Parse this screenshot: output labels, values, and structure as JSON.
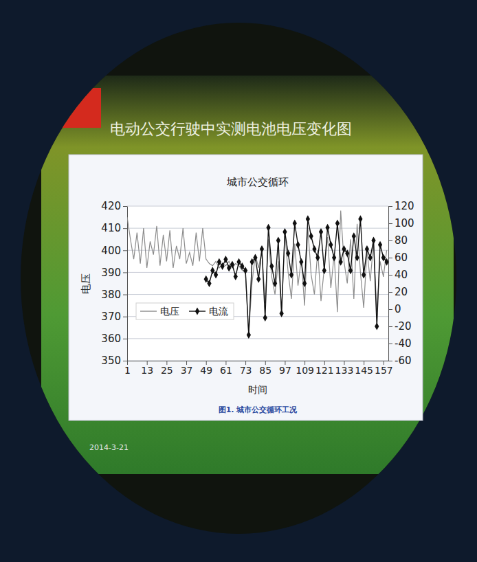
{
  "slide": {
    "title": "电动公交行驶中实测电池电压变化图",
    "date": "2014-3-21"
  },
  "chart_data": {
    "type": "line",
    "title": "城市公交循环",
    "caption": "图1. 城市公交循环工况",
    "x_label": "时间",
    "y_label": "电压",
    "x": [
      1,
      3,
      5,
      7,
      9,
      11,
      13,
      15,
      17,
      19,
      21,
      23,
      25,
      27,
      29,
      31,
      33,
      35,
      37,
      39,
      41,
      43,
      45,
      47,
      49,
      51,
      53,
      55,
      57,
      59,
      61,
      63,
      65,
      67,
      69,
      71,
      73,
      75,
      77,
      79,
      81,
      83,
      85,
      87,
      89,
      91,
      93,
      95,
      97,
      99,
      101,
      103,
      105,
      107,
      109,
      111,
      113,
      115,
      117,
      119,
      121,
      123,
      125,
      127,
      129,
      131,
      133,
      135,
      137,
      139,
      141,
      143,
      145,
      147,
      149,
      151,
      153,
      155,
      157,
      159
    ],
    "series": [
      {
        "name": "电压",
        "color": "#8c8c8c",
        "marker": "none",
        "line_style": "solid",
        "values": [
          415,
          405,
          396,
          408,
          394,
          410,
          392,
          404,
          398,
          411,
          393,
          407,
          395,
          409,
          392,
          402,
          396,
          410,
          394,
          399,
          393,
          408,
          395,
          410,
          396,
          394,
          393,
          395,
          392,
          394,
          393,
          395,
          392,
          394,
          393,
          391,
          390,
          362,
          385,
          398,
          392,
          400,
          376,
          405,
          388,
          380,
          395,
          372,
          408,
          390,
          378,
          403,
          384,
          396,
          375,
          410,
          389,
          380,
          400,
          377,
          392,
          406,
          383,
          398,
          372,
          418,
          395,
          385,
          405,
          378,
          412,
          390,
          374,
          400,
          386,
          404,
          372,
          395,
          388,
          400
        ]
      },
      {
        "name": "电流",
        "color": "#111111",
        "marker": "diamond",
        "line_style": "solid",
        "axis": "y2",
        "values": [
          null,
          null,
          null,
          null,
          null,
          null,
          null,
          null,
          null,
          null,
          null,
          null,
          null,
          null,
          null,
          null,
          null,
          null,
          null,
          null,
          null,
          null,
          null,
          null,
          35,
          30,
          45,
          40,
          55,
          50,
          58,
          48,
          52,
          38,
          55,
          50,
          45,
          -30,
          55,
          60,
          35,
          70,
          -10,
          95,
          50,
          30,
          80,
          -5,
          90,
          65,
          40,
          100,
          75,
          55,
          30,
          105,
          85,
          70,
          60,
          90,
          45,
          95,
          75,
          60,
          100,
          55,
          70,
          65,
          45,
          85,
          60,
          105,
          40,
          70,
          60,
          80,
          -20,
          75,
          60,
          55
        ]
      }
    ],
    "xlim": [
      1,
      160
    ],
    "xticks": [
      1,
      13,
      25,
      37,
      49,
      61,
      73,
      85,
      97,
      109,
      121,
      133,
      145,
      157
    ],
    "ylim": [
      350,
      420
    ],
    "yticks": [
      350,
      360,
      370,
      380,
      390,
      400,
      410,
      420
    ],
    "y2lim": [
      -60,
      120
    ],
    "y2ticks": [
      -60,
      -40,
      -20,
      0,
      20,
      40,
      60,
      80,
      100,
      120
    ],
    "grid": true,
    "legend": "left"
  }
}
